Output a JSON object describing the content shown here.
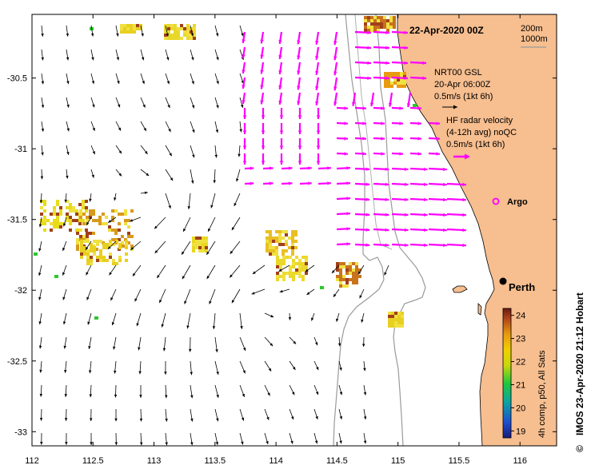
{
  "title": "22-Apr-2020 00Z",
  "contours": {
    "c200": "200m",
    "c1000": "1000m"
  },
  "legend": {
    "nrt_lines": [
      "NRT00 GSL",
      "20-Apr 06:00Z",
      "0.5m/s (1kt 6h)"
    ],
    "hf_lines": [
      "HF radar velocity",
      "(4-12h avg) noQC",
      "0.5m/s (1kt 6h)"
    ]
  },
  "argo_label": "Argo",
  "city_label": "Perth",
  "side_label": "IMOS 23-Apr-2020 21:12 Hobart",
  "copyright": "©",
  "colorbar": {
    "label": "4h comp, p50, All Sats",
    "ticks": [
      "24",
      "23",
      "22",
      "21",
      "20",
      "19"
    ],
    "min": 18.7,
    "max": 24.3
  },
  "axes": {
    "x_ticks": [
      112,
      112.5,
      113,
      113.5,
      114,
      114.5,
      115,
      115.5,
      116
    ],
    "x_labels": [
      "112",
      "112.5",
      "113",
      "113.5",
      "114",
      "114.5",
      "115",
      "115.5",
      "116"
    ],
    "y_ticks": [
      -30.5,
      -31,
      -31.5,
      -32,
      -32.5,
      -33
    ],
    "y_labels": [
      "-30.5",
      "-31",
      "-31.5",
      "-32",
      "-32.5",
      "-33"
    ],
    "lon_range": [
      112,
      116.3
    ],
    "lat_range": [
      -33.1,
      -30.05
    ]
  },
  "colors": {
    "land": "#f7be8f",
    "hf": "#ff00ff",
    "arrow": "#000000",
    "contour": "#9a9a9a",
    "frame": "#000000"
  }
}
